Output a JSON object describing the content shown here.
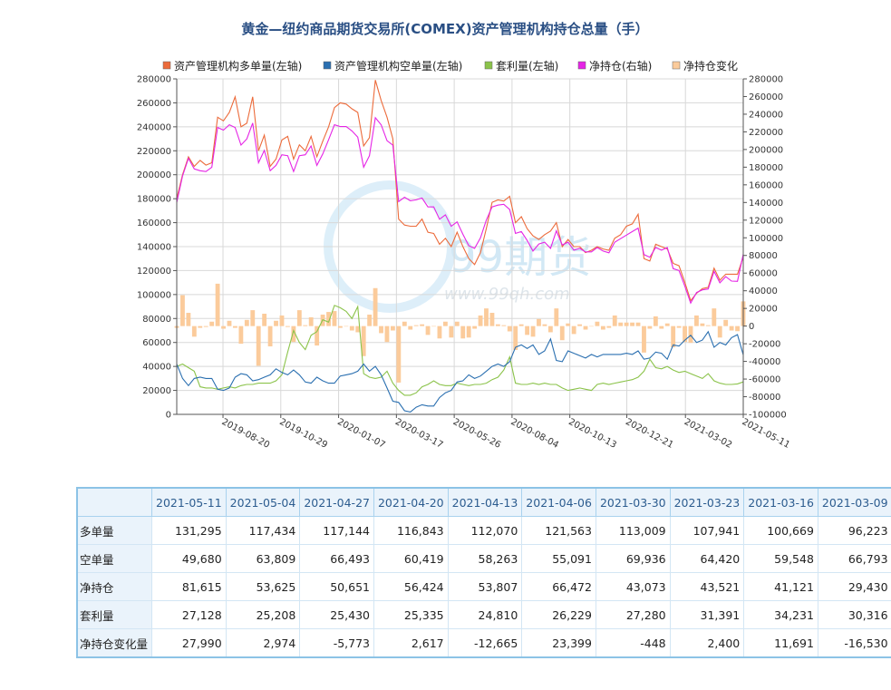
{
  "chart_data": {
    "type": "line",
    "title": "黄金—纽约商品期货交易所(COMEX)资产管理机构持仓总量（手）",
    "legend": [
      {
        "name": "资产管理机构多单量(左轴)",
        "color": "#ec6b3b"
      },
      {
        "name": "资产管理机构空单量(左轴)",
        "color": "#2a6fb0"
      },
      {
        "name": "套利量(左轴)",
        "color": "#8bc34a"
      },
      {
        "name": "净持仓(右轴)",
        "color": "#e524e5"
      },
      {
        "name": "净持仓变化",
        "color": "#fbcb9b"
      }
    ],
    "legend_placement": "top",
    "grid": true,
    "y_left": {
      "min": 0,
      "max": 280000,
      "step": 20000,
      "ticks": [
        "0",
        "20000",
        "40000",
        "60000",
        "80000",
        "100000",
        "120000",
        "140000",
        "160000",
        "180000",
        "200000",
        "220000",
        "240000",
        "260000",
        "280000"
      ]
    },
    "y_right": {
      "min": -100000,
      "max": 280000,
      "step": 20000,
      "ticks": [
        "-100000",
        "-80000",
        "-60000",
        "-40000",
        "-20000",
        "0",
        "20000",
        "40000",
        "60000",
        "80000",
        "100000",
        "120000",
        "140000",
        "160000",
        "180000",
        "200000",
        "220000",
        "240000",
        "260000",
        "280000"
      ]
    },
    "x_tick_labels": [
      "2019-08-20",
      "2019-10-29",
      "2020-01-07",
      "2020-03-17",
      "2020-05-26",
      "2020-08-04",
      "2020-10-13",
      "2020-12-21",
      "2021-03-02",
      "2021-05-11"
    ],
    "x_start": "2019-06-25",
    "x_end": "2021-05-11",
    "series": [
      {
        "name": "资产管理机构多单量(左轴)",
        "axis": "left",
        "values": [
          180000,
          200000,
          215000,
          207000,
          212000,
          208000,
          210000,
          248000,
          245000,
          252000,
          265000,
          240000,
          243000,
          265000,
          220000,
          233000,
          207000,
          213000,
          229000,
          232000,
          213000,
          225000,
          220000,
          232000,
          215000,
          228000,
          240000,
          256000,
          260000,
          259000,
          255000,
          252000,
          224000,
          231000,
          279000,
          262000,
          248000,
          230000,
          163000,
          158000,
          157000,
          157000,
          163000,
          152000,
          151000,
          142000,
          147000,
          140000,
          152000,
          140000,
          130000,
          125000,
          135000,
          155000,
          177000,
          179000,
          178000,
          182000,
          160000,
          165000,
          155000,
          149000,
          146000,
          150000,
          153000,
          160000,
          140000,
          146000,
          140000,
          140000,
          135000,
          137000,
          140000,
          138000,
          137000,
          147000,
          150000,
          157000,
          159000,
          167000,
          130000,
          128000,
          142000,
          140000,
          138000,
          126000,
          124000,
          110000,
          95000,
          101000,
          105000,
          106000,
          122000,
          112000,
          117000,
          117000,
          117000,
          131295
        ]
      },
      {
        "name": "资产管理机构空单量(左轴)",
        "axis": "left",
        "values": [
          42000,
          30000,
          24000,
          30000,
          31000,
          30000,
          30000,
          21000,
          20000,
          22000,
          31000,
          34000,
          33000,
          28000,
          29000,
          31000,
          33000,
          38000,
          35000,
          33000,
          37000,
          33000,
          27000,
          26000,
          31000,
          28000,
          26000,
          26000,
          32000,
          33000,
          34000,
          36000,
          42000,
          36000,
          40000,
          33000,
          22000,
          11000,
          10000,
          3000,
          2000,
          6000,
          8000,
          7000,
          7000,
          14000,
          18000,
          20000,
          27000,
          28000,
          33000,
          30000,
          32000,
          36000,
          40000,
          42000,
          40000,
          44000,
          56000,
          58000,
          55000,
          58000,
          50000,
          53000,
          63000,
          45000,
          44000,
          53000,
          51000,
          49000,
          47000,
          50000,
          48000,
          50000,
          50000,
          50000,
          50000,
          51000,
          50000,
          53000,
          46000,
          47000,
          52000,
          51000,
          46000,
          58000,
          57000,
          62000,
          66000,
          60000,
          62000,
          69000,
          56000,
          60000,
          58000,
          64000,
          66493,
          49680
        ]
      },
      {
        "name": "套利量(左轴)",
        "axis": "left",
        "values": [
          40000,
          42000,
          39000,
          36000,
          23000,
          22000,
          22000,
          21000,
          22000,
          23000,
          22000,
          24000,
          25000,
          25000,
          26000,
          26000,
          26000,
          28000,
          33000,
          52000,
          70000,
          60000,
          54000,
          66000,
          69000,
          79000,
          77000,
          91000,
          89000,
          86000,
          80000,
          90000,
          34000,
          31000,
          30000,
          31000,
          36000,
          26000,
          20000,
          16000,
          16000,
          18000,
          23000,
          25000,
          28000,
          25000,
          24000,
          24000,
          26000,
          25000,
          24000,
          25000,
          25000,
          26000,
          29000,
          31000,
          37000,
          48000,
          26000,
          25000,
          25000,
          26000,
          25000,
          26000,
          25000,
          25000,
          22000,
          20000,
          21000,
          22000,
          21000,
          20000,
          25000,
          26000,
          25000,
          26000,
          27000,
          28000,
          29000,
          31000,
          36000,
          46000,
          39000,
          38000,
          40000,
          37000,
          35000,
          36000,
          34000,
          32000,
          30000,
          34000,
          28000,
          26000,
          25000,
          25000,
          25430,
          27128
        ]
      },
      {
        "name": "净持仓(右轴)",
        "axis": "right",
        "values": [
          140000,
          170000,
          190000,
          178000,
          176000,
          175000,
          180000,
          225000,
          222000,
          228000,
          225000,
          205000,
          212000,
          230000,
          185000,
          199000,
          176000,
          182000,
          194000,
          193000,
          175000,
          193000,
          194000,
          204000,
          182000,
          195000,
          211000,
          228000,
          226000,
          226000,
          221000,
          214000,
          180000,
          193000,
          236000,
          228000,
          210000,
          205000,
          141000,
          146000,
          142000,
          143000,
          145000,
          135000,
          135000,
          121000,
          126000,
          113000,
          118000,
          104000,
          91000,
          88000,
          100000,
          120000,
          135000,
          137000,
          138000,
          132000,
          105000,
          107000,
          97000,
          85000,
          93000,
          95000,
          88000,
          108000,
          92000,
          95000,
          86000,
          88000,
          84000,
          84000,
          89000,
          85000,
          83000,
          95000,
          99000,
          103000,
          107000,
          111000,
          81000,
          78000,
          89000,
          86000,
          89000,
          65000,
          63000,
          45000,
          26000,
          38000,
          41000,
          42000,
          62000,
          49000,
          56000,
          51000,
          50651,
          81615
        ]
      },
      {
        "name": "净持仓变化",
        "axis": "right",
        "type": "bar",
        "values": [
          -2000,
          35000,
          15000,
          -12000,
          -2000,
          -1000,
          5000,
          48000,
          -3000,
          6000,
          -2000,
          -20000,
          7000,
          18000,
          -45000,
          14000,
          -23000,
          6000,
          12000,
          -1000,
          -18000,
          18000,
          1000,
          10000,
          -22000,
          13000,
          16000,
          17000,
          -2000,
          0,
          -5000,
          -7000,
          -34000,
          13000,
          43000,
          -8000,
          -18000,
          -5000,
          -64000,
          5000,
          -4000,
          1000,
          2000,
          -10000,
          0,
          -14000,
          5000,
          -13000,
          5000,
          -14000,
          -13000,
          -3000,
          12000,
          20000,
          15000,
          2000,
          1000,
          -6000,
          -27000,
          2000,
          -10000,
          -12000,
          8000,
          2000,
          -7000,
          20000,
          -16000,
          3000,
          -9000,
          2000,
          -4000,
          0,
          5000,
          -4000,
          -2000,
          12000,
          4000,
          4000,
          4000,
          4000,
          -30000,
          -3000,
          11000,
          -3000,
          3000,
          -24000,
          -2000,
          -18000,
          -19000,
          12000,
          3000,
          1000,
          20000,
          -13000,
          7000,
          -5000,
          -5773,
          27990
        ]
      }
    ]
  },
  "table": {
    "corner": "",
    "headers": [
      "2021-05-11",
      "2021-05-04",
      "2021-04-27",
      "2021-04-20",
      "2021-04-13",
      "2021-04-06",
      "2021-03-30",
      "2021-03-23",
      "2021-03-16",
      "2021-03-09"
    ],
    "rows": [
      {
        "label": "多单量",
        "cells": [
          "131,295",
          "117,434",
          "117,144",
          "116,843",
          "112,070",
          "121,563",
          "113,009",
          "107,941",
          "100,669",
          "96,223"
        ]
      },
      {
        "label": "空单量",
        "cells": [
          "49,680",
          "63,809",
          "66,493",
          "60,419",
          "58,263",
          "55,091",
          "69,936",
          "64,420",
          "59,548",
          "66,793"
        ]
      },
      {
        "label": "净持仓",
        "cells": [
          "81,615",
          "53,625",
          "50,651",
          "56,424",
          "53,807",
          "66,472",
          "43,073",
          "43,521",
          "41,121",
          "29,430"
        ]
      },
      {
        "label": "套利量",
        "cells": [
          "27,128",
          "25,208",
          "25,430",
          "25,335",
          "24,810",
          "26,229",
          "27,280",
          "31,391",
          "34,231",
          "30,316"
        ]
      },
      {
        "label": "净持仓变化量",
        "cells": [
          "27,990",
          "2,974",
          "-5,773",
          "2,617",
          "-12,665",
          "23,399",
          "-448",
          "2,400",
          "11,691",
          "-16,530"
        ]
      }
    ]
  },
  "watermark": {
    "brand": "99期货",
    "url": "www.99qh.com"
  }
}
